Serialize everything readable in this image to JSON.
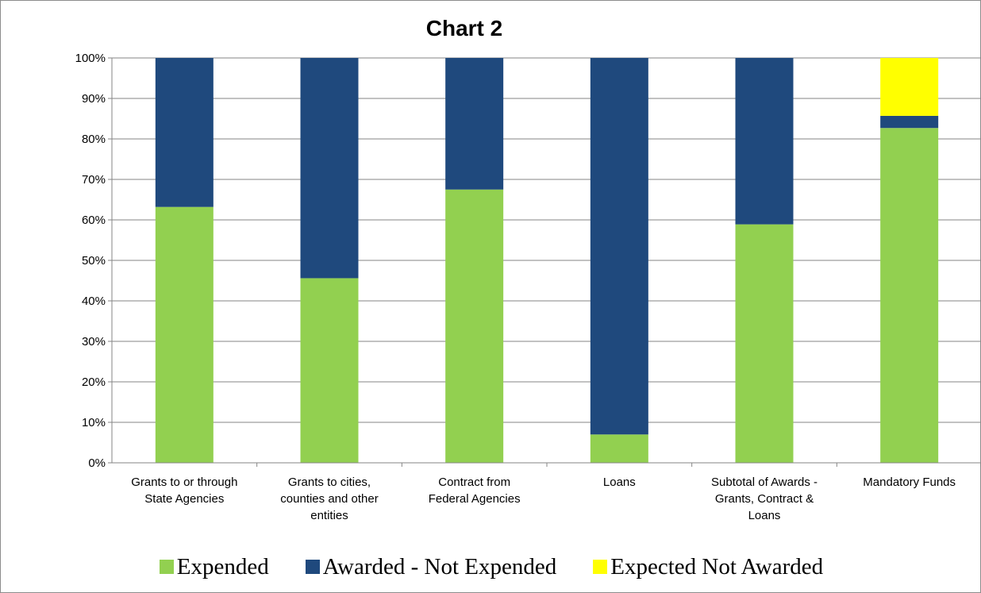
{
  "chart_data": {
    "type": "bar",
    "stacked": "percent",
    "title": "Chart 2",
    "xlabel": "",
    "ylabel": "",
    "ylim": [
      0,
      100
    ],
    "yticks": [
      "0%",
      "10%",
      "20%",
      "30%",
      "40%",
      "50%",
      "60%",
      "70%",
      "80%",
      "90%",
      "100%"
    ],
    "categories": [
      [
        "Grants to or through",
        "State Agencies"
      ],
      [
        "Grants to cities,",
        "counties and other",
        "entities"
      ],
      [
        "Contract from",
        "Federal Agencies"
      ],
      [
        "Loans"
      ],
      [
        "Subtotal of Awards -",
        "Grants, Contract &",
        "Loans"
      ],
      [
        "Mandatory Funds"
      ]
    ],
    "series": [
      {
        "name": "Expended",
        "color": "#92d050",
        "values": [
          63.2,
          45.6,
          67.5,
          7.0,
          58.9,
          82.7
        ]
      },
      {
        "name": "Awarded - Not Expended",
        "color": "#1f497d",
        "values": [
          36.8,
          54.4,
          32.5,
          93.0,
          41.1,
          3.0
        ]
      },
      {
        "name": "Expected Not Awarded",
        "color": "#ffff00",
        "values": [
          0,
          0,
          0,
          0,
          0,
          14.3
        ]
      }
    ],
    "grid": true,
    "legend_position": "bottom"
  }
}
